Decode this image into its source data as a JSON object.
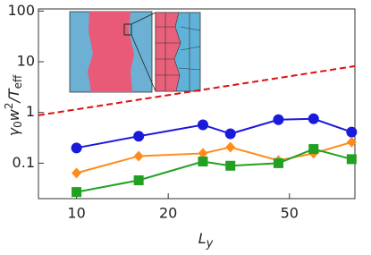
{
  "chart_data": {
    "type": "line",
    "xlabel": [
      "L",
      "y"
    ],
    "ylabel": [
      "γ",
      "0",
      "w",
      "2",
      "/T",
      "eff"
    ],
    "xscale": "log",
    "yscale": "log",
    "xlim": [
      7.5,
      82
    ],
    "ylim": [
      0.02,
      110
    ],
    "xticks": [
      10,
      20,
      50
    ],
    "yticks": [
      0.1,
      1,
      10,
      100
    ],
    "series": [
      {
        "color": "#1a1add",
        "marker": "circle",
        "x": [
          10,
          16,
          26,
          32,
          46,
          60,
          80
        ],
        "values": [
          0.2,
          0.34,
          0.57,
          0.38,
          0.72,
          0.75,
          0.41
        ]
      },
      {
        "color": "#ff8c1a",
        "marker": "diamond",
        "x": [
          10,
          16,
          26,
          32,
          46,
          60,
          80
        ],
        "values": [
          0.064,
          0.138,
          0.156,
          0.207,
          0.113,
          0.156,
          0.26
        ]
      },
      {
        "color": "#22a022",
        "marker": "square",
        "x": [
          10,
          16,
          26,
          32,
          46,
          60,
          80
        ],
        "values": [
          0.027,
          0.046,
          0.108,
          0.089,
          0.1,
          0.19,
          0.12
        ]
      },
      {
        "color": "#dd1111",
        "dashed": true,
        "x": [
          7.5,
          82
        ],
        "values": [
          0.88,
          8.2
        ]
      }
    ]
  }
}
